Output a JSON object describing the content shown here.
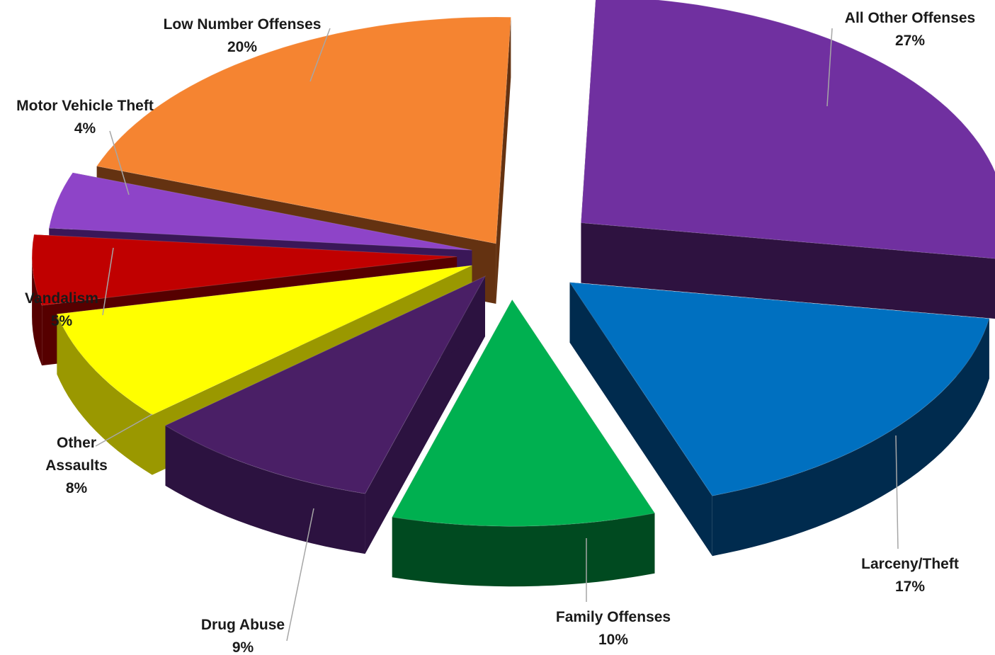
{
  "chart_data": {
    "type": "pie",
    "title": "",
    "slices": [
      {
        "label": "All Other Offenses",
        "value": 27,
        "pct_label": "27%",
        "color": "#7030A0",
        "side_color": "#2E1240"
      },
      {
        "label": "Larceny/Theft",
        "value": 17,
        "pct_label": "17%",
        "color": "#0070C0",
        "side_color": "#002B4E"
      },
      {
        "label": "Family Offenses",
        "value": 10,
        "pct_label": "10%",
        "color": "#00B050",
        "side_color": "#004A20"
      },
      {
        "label": "Drug Abuse",
        "value": 9,
        "pct_label": "9%",
        "color": "#4A1F66",
        "side_color": "#2C1240"
      },
      {
        "label": "Other Assaults",
        "value": 8,
        "pct_label": "8%",
        "color": "#FFFF00",
        "side_color": "#9A9800"
      },
      {
        "label": "Vandalism",
        "value": 5,
        "pct_label": "5%",
        "color": "#C00000",
        "side_color": "#560000"
      },
      {
        "label": "Motor Vehicle Theft",
        "value": 4,
        "pct_label": "4%",
        "color": "#8E44C8",
        "side_color": "#3A1758"
      },
      {
        "label": "Low Number Offenses",
        "value": 20,
        "pct_label": "20%",
        "color": "#F58431",
        "side_color": "#643211"
      }
    ],
    "legend": "none",
    "style": "3d-exploded-pie"
  }
}
